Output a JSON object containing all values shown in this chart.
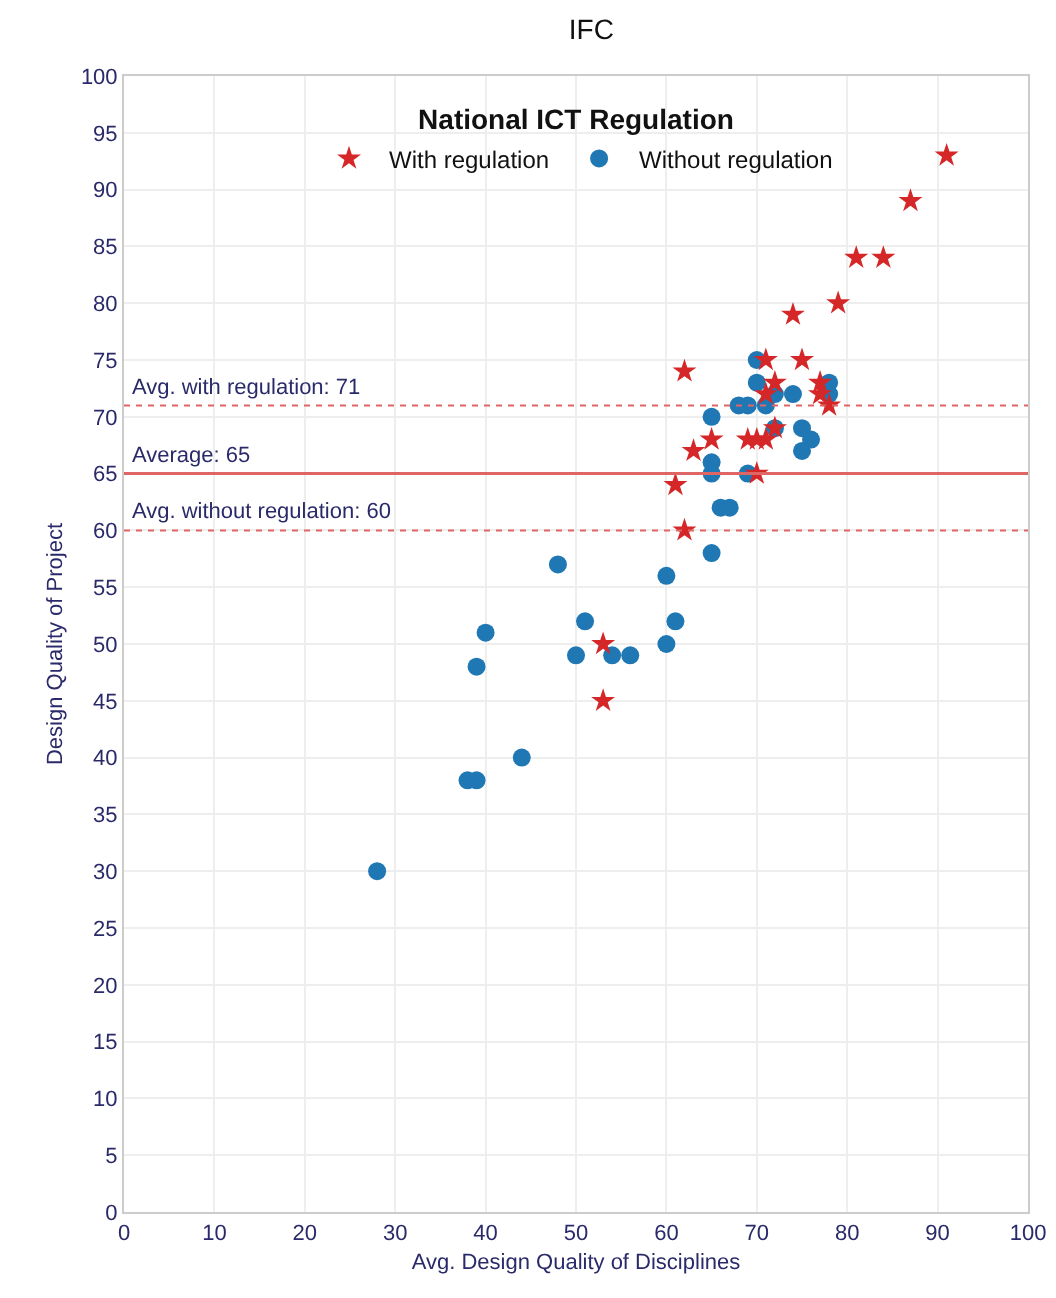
{
  "chart_data": {
    "type": "scatter",
    "title": "IFC",
    "legend_title": "National ICT Regulation",
    "xlabel": "Avg. Design Quality of Disciplines",
    "ylabel": "Design Quality of Project",
    "xlim": [
      0,
      100
    ],
    "xticks": [
      0,
      10,
      20,
      30,
      40,
      50,
      60,
      70,
      80,
      90,
      100
    ],
    "ylim": [
      0,
      100
    ],
    "yticks": [
      0,
      5,
      10,
      15,
      20,
      25,
      30,
      35,
      40,
      45,
      50,
      55,
      60,
      65,
      70,
      75,
      80,
      85,
      90,
      95,
      100
    ],
    "grid": true,
    "legend": "top",
    "series": [
      {
        "name": "With regulation",
        "color": "#d62728",
        "marker": "star",
        "x": [
          71,
          75,
          62,
          72,
          77,
          77,
          71,
          78,
          72,
          65,
          69,
          70,
          71,
          63,
          70,
          61,
          62,
          53,
          53,
          91,
          87,
          81,
          84,
          79,
          74
        ],
        "values": [
          75,
          75,
          74,
          73,
          73,
          72,
          72,
          71,
          69,
          68,
          68,
          68,
          68,
          67,
          65,
          64,
          60,
          50,
          45,
          93,
          89,
          84,
          84,
          80,
          79
        ]
      },
      {
        "name": "Without regulation",
        "color": "#1f77b4",
        "marker": "circle",
        "x": [
          70,
          70,
          65,
          68,
          69,
          71,
          72,
          74,
          78,
          78,
          72,
          75,
          76,
          75,
          65,
          65,
          69,
          66,
          67,
          65,
          48,
          60,
          61,
          60,
          51,
          50,
          54,
          56,
          40,
          39,
          44,
          38,
          39,
          28
        ],
        "values": [
          75,
          73,
          70,
          71,
          71,
          71,
          72,
          72,
          73,
          72,
          69,
          69,
          68,
          67,
          66,
          65,
          65,
          62,
          62,
          58,
          57,
          56,
          52,
          50,
          52,
          49,
          49,
          49,
          51,
          48,
          40,
          38,
          38,
          30
        ]
      }
    ],
    "ref_lines": [
      {
        "axis": "y",
        "value": 71,
        "label": "Avg. with regulation: 71",
        "color": "#e06666",
        "line_style": "dotted"
      },
      {
        "axis": "y",
        "value": 65,
        "label": "Average: 65",
        "color": "#e06666",
        "line_style": "solid"
      },
      {
        "axis": "y",
        "value": 60,
        "label": "Avg. without regulation: 60",
        "color": "#e06666",
        "line_style": "dotted"
      }
    ]
  }
}
